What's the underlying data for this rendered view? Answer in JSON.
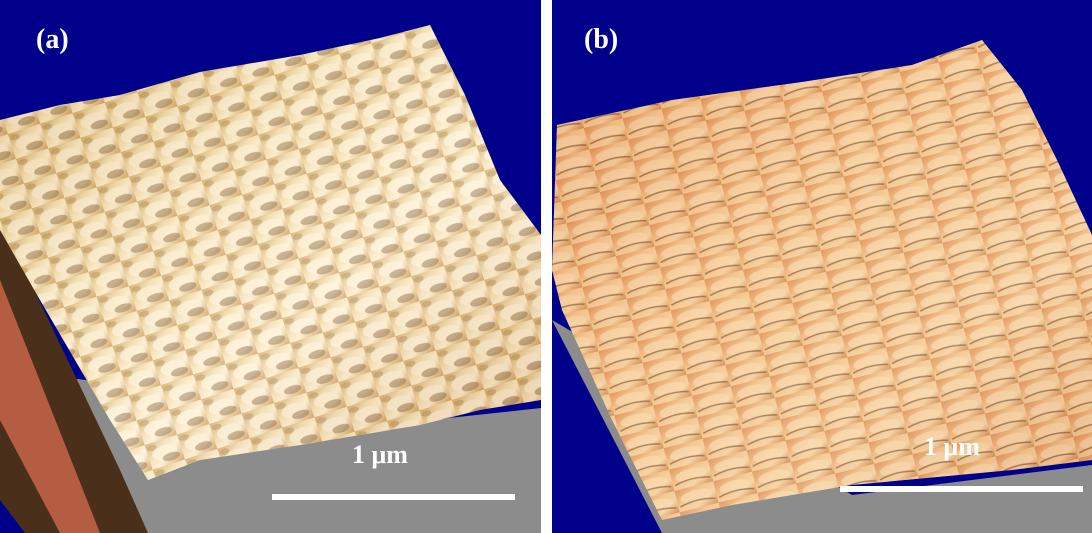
{
  "panels": [
    {
      "label": "(a)",
      "scale_label": "1 μm"
    },
    {
      "label": "(b)",
      "scale_label": "1 μm"
    }
  ],
  "colors": {
    "background": "#00008b",
    "surface_a": "#e8cf95",
    "surface_b": "#e4a367",
    "base": "#8c8c8c"
  }
}
